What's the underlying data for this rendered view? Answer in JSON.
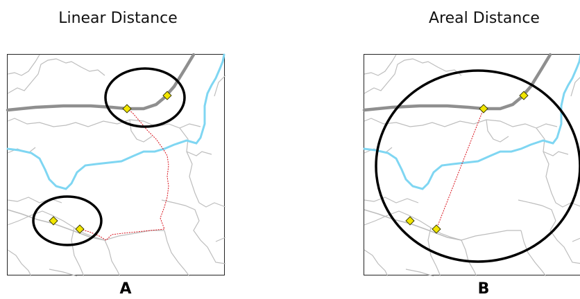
{
  "titles": {
    "left": "Linear Distance",
    "right": "Areal Distance"
  },
  "labels": {
    "left": "A",
    "right": "B"
  },
  "colors": {
    "road": "#8f8f8f",
    "boundary": "#bdbdbd",
    "river": "#7fd6f2",
    "path": "#d8101a",
    "point_fill": "#f2e600",
    "point_stroke": "#3a3a00",
    "circle": "#000000",
    "frame": "#222222"
  },
  "icons": {
    "point": "yellow-diamond-marker"
  }
}
